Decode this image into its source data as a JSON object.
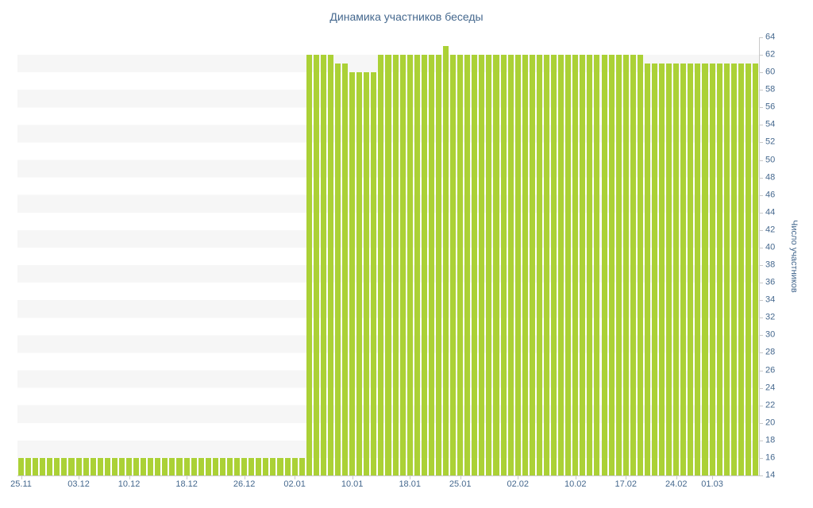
{
  "chart_data": {
    "type": "bar",
    "title": "Динамика участников беседы",
    "ylabel": "Число участников",
    "xlabel": "",
    "ylim": [
      14,
      64
    ],
    "y_tick_step": 2,
    "grid": "horizontal-zebra-stripes",
    "legend": "none",
    "bar_color": "#abd136",
    "text_color": "#45688e",
    "stripe_color": "#f6f6f6",
    "axis_color": "#c9c9c9",
    "y_tick_labels": [
      14,
      16,
      18,
      20,
      22,
      24,
      26,
      28,
      30,
      32,
      34,
      36,
      38,
      40,
      42,
      44,
      46,
      48,
      50,
      52,
      54,
      56,
      58,
      60,
      62,
      64
    ],
    "x_tick_labels": [
      "25.11",
      "03.12",
      "10.12",
      "18.12",
      "26.12",
      "02.01",
      "10.01",
      "18.01",
      "25.01",
      "02.02",
      "10.02",
      "17.02",
      "24.02",
      "01.03"
    ],
    "x_tick_day_index": [
      0,
      8,
      15,
      23,
      31,
      38,
      46,
      54,
      61,
      69,
      77,
      84,
      91,
      96
    ],
    "values": [
      16,
      16,
      16,
      16,
      16,
      16,
      16,
      16,
      16,
      16,
      16,
      16,
      16,
      16,
      16,
      16,
      16,
      16,
      16,
      16,
      16,
      16,
      16,
      16,
      16,
      16,
      16,
      16,
      16,
      16,
      16,
      16,
      16,
      16,
      16,
      16,
      16,
      16,
      16,
      16,
      62,
      62,
      62,
      62,
      61,
      61,
      60,
      60,
      60,
      60,
      62,
      62,
      62,
      62,
      62,
      62,
      62,
      62,
      62,
      63,
      62,
      62,
      62,
      62,
      62,
      62,
      62,
      62,
      62,
      62,
      62,
      62,
      62,
      62,
      62,
      62,
      62,
      62,
      62,
      62,
      62,
      62,
      62,
      62,
      62,
      62,
      62,
      61,
      61,
      61,
      61,
      61,
      61,
      61,
      61,
      61,
      61,
      61,
      61,
      61,
      61,
      61,
      61
    ]
  }
}
